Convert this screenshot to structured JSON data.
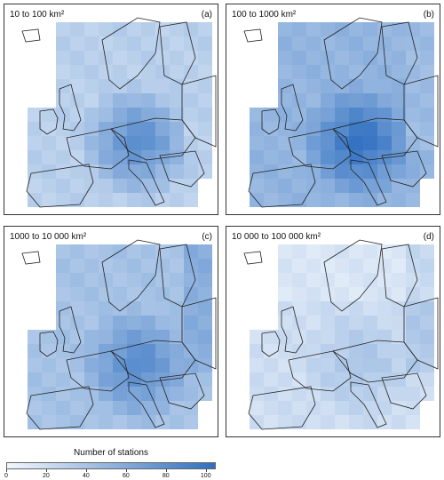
{
  "panels": [
    {
      "range_label": "10 to 100 km²",
      "letter": "(a)",
      "level": "low-medium, concentrated in central Europe"
    },
    {
      "range_label": "100 to 1000 km²",
      "letter": "(b)",
      "level": "highest, dense across western/central Europe"
    },
    {
      "range_label": "1000 to 10 000 km²",
      "letter": "(c)",
      "level": "medium, widespread incl. eastern Europe"
    },
    {
      "range_label": "10 000 to 100 000 km²",
      "letter": "(d)",
      "level": "lowest, sparse"
    }
  ],
  "legend": {
    "title": "Number of stations",
    "ticks": [
      "0",
      "20",
      "40",
      "60",
      "80",
      "100"
    ],
    "color_low": "#f2f7fd",
    "color_high": "#2f6fc0"
  }
}
